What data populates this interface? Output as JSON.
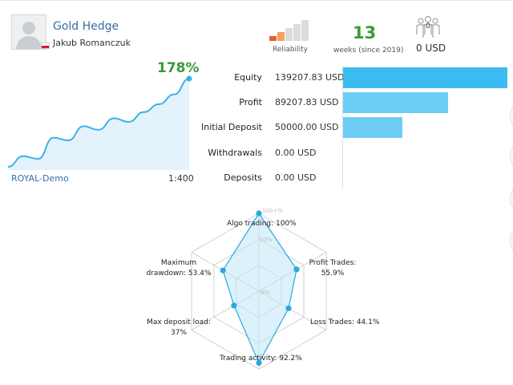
{
  "signal": {
    "name": "Gold Hedge",
    "author": "Jakub Romanczuk",
    "country_flag": "poland-flag-icon"
  },
  "reliability": {
    "label": "Reliability",
    "level_fraction": 0.4,
    "colors": {
      "active_dark": "#e8602b",
      "active_light": "#f0a35e",
      "inactive": "#dcdcdc"
    }
  },
  "weeks": {
    "value": "13",
    "label": "weeks (since 2019)"
  },
  "subscribers": {
    "count": "0",
    "price": "0 USD",
    "icon": "subscribers-icon"
  },
  "growth": {
    "percent": "178%",
    "account": "ROYAL-Demo",
    "leverage": "1:400",
    "series": [
      0,
      12,
      9,
      33,
      30,
      46,
      42,
      55,
      51,
      62,
      71,
      82,
      100
    ],
    "line_color": "#3ab2e8",
    "fill_color": "#e4f3fb"
  },
  "stats": [
    {
      "label": "Equity",
      "value": "139207.83 USD",
      "fraction": 1.0,
      "color": "#3bbcf0"
    },
    {
      "label": "Profit",
      "value": "89207.83 USD",
      "fraction": 0.64,
      "color": "#6dcef5"
    },
    {
      "label": "Initial Deposit",
      "value": "50000.00 USD",
      "fraction": 0.36,
      "color": "#6dcef5"
    },
    {
      "label": "Withdrawals",
      "value": "0.00 USD",
      "fraction": 0.0,
      "color": "#6dcef5"
    },
    {
      "label": "Deposits",
      "value": "0.00 USD",
      "fraction": 0.0,
      "color": "#6dcef5"
    }
  ],
  "radar": {
    "scale_labels": [
      "100+%",
      "50%",
      "0%"
    ],
    "axes": [
      {
        "label": "Algo trading: 100%",
        "value": 1.0
      },
      {
        "label": "Profit Trades:\n55.9%",
        "value": 0.559
      },
      {
        "label": "Loss Trades: 44.1%",
        "value": 0.441
      },
      {
        "label": "Trading activity: 92.2%",
        "value": 0.922
      },
      {
        "label": "Max deposit load:\n37%",
        "value": 0.37
      },
      {
        "label": "Maximum\ndrawdown: 53.4%",
        "value": 0.534
      }
    ],
    "colors": {
      "line": "#2aa8e0",
      "fill": "#bfe6f6",
      "grid": "#c8c8c8"
    }
  }
}
